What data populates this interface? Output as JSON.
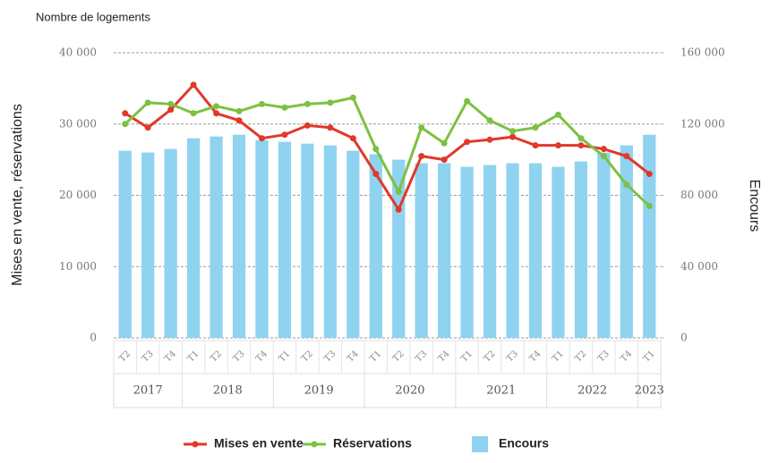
{
  "chart_data": {
    "type": "bar-line",
    "title": "Nombre de logements",
    "y_label": "Mises en vente, réservations",
    "y2_label": "Encours",
    "categories": [
      "T2",
      "T3",
      "T4",
      "T1",
      "T2",
      "T3",
      "T4",
      "T1",
      "T2",
      "T3",
      "T4",
      "T1",
      "T2",
      "T3",
      "T4",
      "T1",
      "T2",
      "T3",
      "T4",
      "T1",
      "T2",
      "T3",
      "T4",
      "T1"
    ],
    "category_groups": [
      "2017",
      "2017",
      "2017",
      "2018",
      "2018",
      "2018",
      "2018",
      "2019",
      "2019",
      "2019",
      "2019",
      "2020",
      "2020",
      "2020",
      "2020",
      "2021",
      "2021",
      "2021",
      "2021",
      "2022",
      "2022",
      "2022",
      "2022",
      "2023"
    ],
    "ylim": [
      0,
      40000
    ],
    "yticks": [
      0,
      {
        "value": 10000,
        "label": "10 000"
      },
      {
        "value": 20000,
        "label": "20 000"
      },
      {
        "value": 30000,
        "label": "30 000"
      },
      {
        "value": 40000,
        "label": "40 000"
      }
    ],
    "y2lim": [
      0,
      160000
    ],
    "y2ticks": [
      0,
      {
        "value": 40000,
        "label": "40 000"
      },
      {
        "value": 80000,
        "label": "80 000"
      },
      {
        "value": 120000,
        "label": "120 000"
      },
      {
        "value": 160000,
        "label": "160 000"
      }
    ],
    "grid": true,
    "legend": "bottom",
    "series": [
      {
        "name": "Encours",
        "type": "bar",
        "axis": "y2",
        "color": "#8fd3f0",
        "values": [
          105000,
          104000,
          106000,
          112000,
          113000,
          114000,
          111000,
          110000,
          109000,
          108000,
          105000,
          103000,
          100000,
          98000,
          98000,
          96000,
          97000,
          98000,
          98000,
          96000,
          99000,
          104000,
          108000,
          114000
        ]
      },
      {
        "name": "Mises en vente",
        "type": "line",
        "color": "#e0392a",
        "values": [
          31500,
          29500,
          32000,
          35500,
          31500,
          30500,
          28000,
          28500,
          29800,
          29500,
          28000,
          23000,
          18000,
          25500,
          25000,
          27500,
          27800,
          28200,
          27000,
          27000,
          27000,
          26500,
          25500,
          23000
        ]
      },
      {
        "name": "Réservations",
        "type": "line",
        "color": "#7cc142",
        "values": [
          30000,
          33000,
          32800,
          31500,
          32500,
          31800,
          32800,
          32300,
          32800,
          33000,
          33700,
          26500,
          20500,
          29500,
          27300,
          33200,
          30500,
          29000,
          29500,
          31300,
          28000,
          25500,
          21500,
          18500
        ]
      }
    ]
  }
}
